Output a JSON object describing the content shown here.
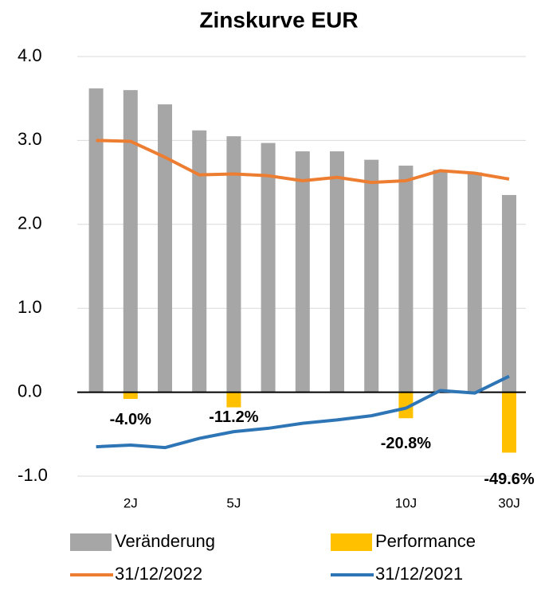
{
  "chart_data": {
    "type": "bar_line",
    "title": "Zinskurve EUR",
    "categories": [
      null,
      "2J",
      null,
      null,
      "5J",
      null,
      null,
      null,
      null,
      "10J",
      null,
      null,
      "30J"
    ],
    "series": [
      {
        "name": "Veränderung",
        "kind": "bar",
        "color": "#a6a6a6",
        "values": [
          3.62,
          3.6,
          3.43,
          3.12,
          3.05,
          2.97,
          2.87,
          2.87,
          2.77,
          2.7,
          2.65,
          2.62,
          2.35
        ]
      },
      {
        "name": "Performance",
        "kind": "bar",
        "color": "#ffc000",
        "values": [
          null,
          -0.08,
          null,
          null,
          -0.18,
          null,
          null,
          null,
          null,
          -0.31,
          null,
          null,
          -0.72
        ]
      },
      {
        "name": "31/12/2022",
        "kind": "line",
        "color": "#ed7d31",
        "values": [
          3.0,
          2.99,
          2.8,
          2.59,
          2.6,
          2.58,
          2.52,
          2.56,
          2.5,
          2.52,
          2.64,
          2.61,
          2.54
        ]
      },
      {
        "name": "31/12/2021",
        "kind": "line",
        "color": "#2e75b6",
        "values": [
          -0.65,
          -0.63,
          -0.66,
          -0.55,
          -0.47,
          -0.43,
          -0.37,
          -0.33,
          -0.28,
          -0.19,
          0.02,
          -0.01,
          0.19
        ]
      }
    ],
    "annotations": [
      "-4.0%",
      "-11.2%",
      "-20.8%",
      "-49.6%"
    ],
    "ylim": [
      -1,
      4
    ],
    "yticks": [
      {
        "value": -1,
        "label": "-1.0"
      },
      {
        "value": 0,
        "label": "0.0"
      },
      {
        "value": 1,
        "label": "1.0"
      },
      {
        "value": 2,
        "label": "2.0"
      },
      {
        "value": 3,
        "label": "3.0"
      },
      {
        "value": 4,
        "label": "4.0"
      }
    ],
    "grid": true
  }
}
